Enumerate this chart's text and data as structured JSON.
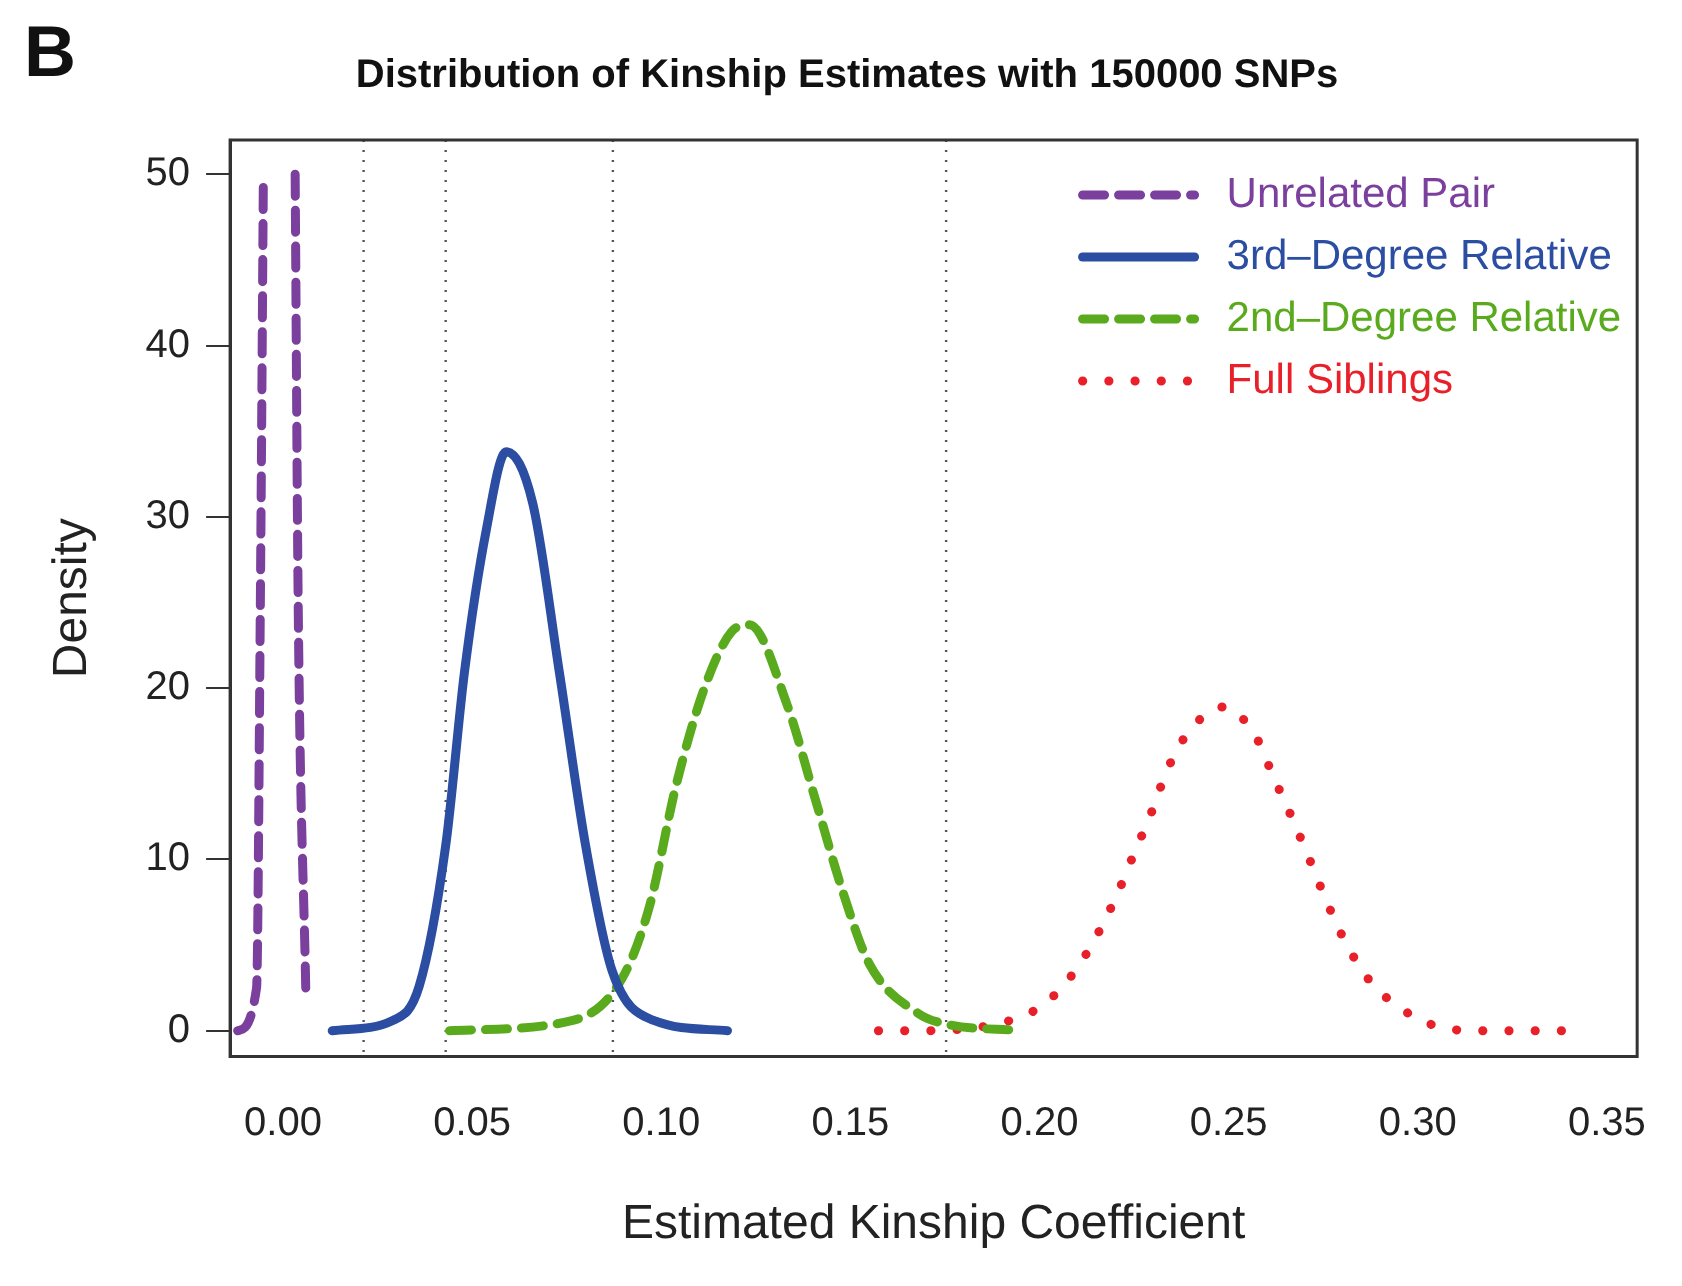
{
  "chart_data": {
    "type": "line",
    "title": "Distribution of Kinship Estimates with 150000 SNPs",
    "xlabel": "Estimated Kinship Coefficient",
    "ylabel": "Density",
    "annotations": [
      "B"
    ],
    "xlim": [
      -0.014,
      0.358
    ],
    "xticks": [
      {
        "value": 0,
        "label": "0.00"
      },
      0.05,
      {
        "value": 0.1,
        "label": "0.10"
      },
      0.15,
      {
        "value": 0.2,
        "label": "0.20"
      },
      0.25,
      {
        "value": 0.3,
        "label": "0.30"
      },
      0.35
    ],
    "ylim": [
      -1.5,
      52
    ],
    "yticks": [
      0,
      10,
      20,
      30,
      40,
      50
    ],
    "grid": false,
    "legend": "top right",
    "marker": "none",
    "ref_lines": [
      {
        "axis": "x",
        "value": 0.0213,
        "color": "#555555",
        "line_style": "dotted"
      },
      {
        "axis": "x",
        "value": 0.043,
        "color": "#555555",
        "line_style": "dotted"
      },
      {
        "axis": "x",
        "value": 0.0872,
        "color": "#555555",
        "line_style": "dotted"
      },
      {
        "axis": "x",
        "value": 0.1753,
        "color": "#555555",
        "line_style": "dotted"
      }
    ],
    "series": [
      {
        "name": "Unrelated Pair",
        "color": "#7b3f9e",
        "line_style": "dashed",
        "x": [
          -0.012,
          -0.007,
          -0.006,
          -0.0052,
          0,
          0.0032,
          0.004,
          0.006
        ],
        "values": [
          0,
          2.5,
          25,
          50,
          null,
          50,
          25,
          2.5
        ]
      },
      {
        "name": "3rd–Degree Relative",
        "color": "#2b4ea2",
        "line_style": "solid",
        "x": [
          0.013,
          0.029,
          0.036,
          0.043,
          0.048,
          0.0537,
          0.059,
          0.066,
          0.073,
          0.08,
          0.087,
          0.098,
          0.1175
        ],
        "values": [
          0,
          0.6,
          2.6,
          10.8,
          21,
          29.2,
          33.8,
          30.8,
          21,
          10.8,
          3.5,
          0.6,
          0
        ]
      },
      {
        "name": "2nd–Degree Relative",
        "color": "#5aaa1e",
        "line_style": "dashed",
        "x": [
          0.044,
          0.0766,
          0.0895,
          0.0968,
          0.104,
          0.1114,
          0.1186,
          0.1233,
          0.1333,
          0.1406,
          0.148,
          0.155,
          0.168,
          0.175,
          0.1954
        ],
        "values": [
          0,
          0.6,
          3,
          7.2,
          14.4,
          20,
          23.3,
          23.7,
          19,
          13.6,
          8.1,
          3.9,
          1,
          0.4,
          0
        ]
      },
      {
        "name": "Full Siblings",
        "color": "#e8202a",
        "line_style": "dotted",
        "x": [
          0.1574,
          0.169,
          0.1799,
          0.1908,
          0.2009,
          0.2091,
          0.2155,
          0.2206,
          0.2251,
          0.2297,
          0.2337,
          0.2396,
          0.2487,
          0.2571,
          0.2617,
          0.2666,
          0.2712,
          0.2758,
          0.2808,
          0.287,
          0.2955,
          0.306,
          0.3168,
          0.3278,
          0.3393
        ],
        "values": [
          0,
          0,
          0.1,
          0.5,
          1.5,
          3.4,
          5.7,
          8,
          10.4,
          12.8,
          15.2,
          17.5,
          18.9,
          17.2,
          14.9,
          12.5,
          10.1,
          7.6,
          5.2,
          3,
          1.3,
          0.2,
          0,
          0,
          0
        ]
      }
    ]
  }
}
